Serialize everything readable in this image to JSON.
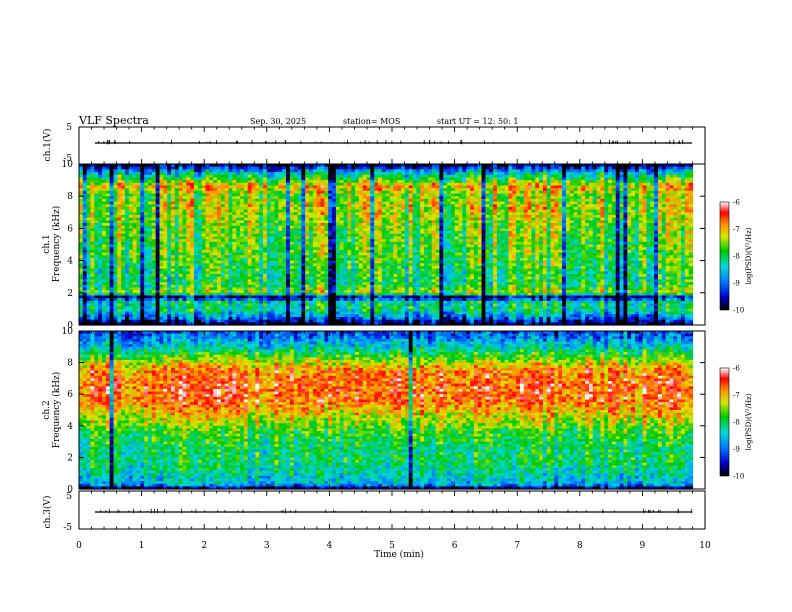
{
  "header": {
    "title": "VLF Spectra",
    "date": "Sep. 30, 2025",
    "station": "station= MOS",
    "start_ut": "start  UT =   12: 50: 1"
  },
  "chart_data": [
    {
      "type": "line",
      "panel": "ch1-waveform",
      "ylabel": "ch.1(V)",
      "ylim": [
        -5,
        5
      ],
      "y_ticks": [
        "5",
        "-5"
      ],
      "x_range_min": [
        0,
        10
      ],
      "series_level_v": 0
    },
    {
      "type": "heatmap",
      "panel": "ch1-spectrogram",
      "ylabel": "ch.1\nFrequency (kHz)",
      "ylabel_line1": "ch.1",
      "ylabel_line2": "Frequency (kHz)",
      "ylim_khz": [
        0,
        10
      ],
      "y_ticks": [
        "0",
        "2",
        "4",
        "6",
        "8",
        "10"
      ],
      "data_extent_min": [
        0,
        9.8
      ],
      "colorbar": {
        "label": "log(PSD)(V²/Hz)",
        "range": [
          -10,
          -6
        ],
        "ticks": [
          "-6",
          "-7",
          "-8",
          "-9",
          "-10"
        ]
      },
      "profile_log_psd_by_khz": [
        [
          0.0,
          -10.0
        ],
        [
          0.5,
          -8.9
        ],
        [
          1.0,
          -8.1
        ],
        [
          1.5,
          -8.3
        ],
        [
          1.7,
          -10.0
        ],
        [
          2.0,
          -7.4
        ],
        [
          2.5,
          -8.0
        ],
        [
          3.0,
          -8.0
        ],
        [
          4.0,
          -7.8
        ],
        [
          5.0,
          -7.7
        ],
        [
          6.0,
          -7.6
        ],
        [
          7.0,
          -7.4
        ],
        [
          7.5,
          -7.3
        ],
        [
          8.0,
          -7.6
        ],
        [
          8.6,
          -7.0
        ],
        [
          9.0,
          -7.7
        ],
        [
          9.5,
          -8.6
        ],
        [
          10.0,
          -10.0
        ]
      ]
    },
    {
      "type": "heatmap",
      "panel": "ch2-spectrogram",
      "ylabel": "ch.2\nFrequency (kHz)",
      "ylabel_line1": "ch.2",
      "ylabel_line2": "Frequency (kHz)",
      "ylim_khz": [
        0,
        10
      ],
      "y_ticks": [
        "0",
        "2",
        "4",
        "6",
        "8",
        "10"
      ],
      "data_extent_min": [
        0,
        9.8
      ],
      "colorbar": {
        "label": "log(PSD)(V²/Hz)",
        "range": [
          -10,
          -6
        ],
        "ticks": [
          "-6",
          "-7",
          "-8",
          "-9",
          "-10"
        ]
      },
      "profile_log_psd_by_khz": [
        [
          0.0,
          -10.0
        ],
        [
          0.3,
          -8.6
        ],
        [
          1.0,
          -8.3
        ],
        [
          1.8,
          -8.0
        ],
        [
          2.5,
          -8.1
        ],
        [
          3.5,
          -7.8
        ],
        [
          4.5,
          -7.3
        ],
        [
          5.5,
          -6.7
        ],
        [
          6.5,
          -6.6
        ],
        [
          7.5,
          -6.8
        ],
        [
          8.3,
          -7.6
        ],
        [
          9.0,
          -8.4
        ],
        [
          9.6,
          -8.9
        ],
        [
          10.0,
          -9.2
        ]
      ]
    },
    {
      "type": "line",
      "panel": "ch3-waveform",
      "ylabel": "ch.3(V)",
      "ylim": [
        -5,
        5
      ],
      "y_ticks": [
        "5",
        "-5"
      ],
      "x_range_min": [
        0,
        10
      ],
      "series_level_v": 0
    }
  ],
  "x_axis": {
    "label": "Time (min)",
    "range": [
      0,
      10
    ],
    "ticks": [
      "0",
      "1",
      "2",
      "3",
      "4",
      "5",
      "6",
      "7",
      "8",
      "9",
      "10"
    ]
  }
}
